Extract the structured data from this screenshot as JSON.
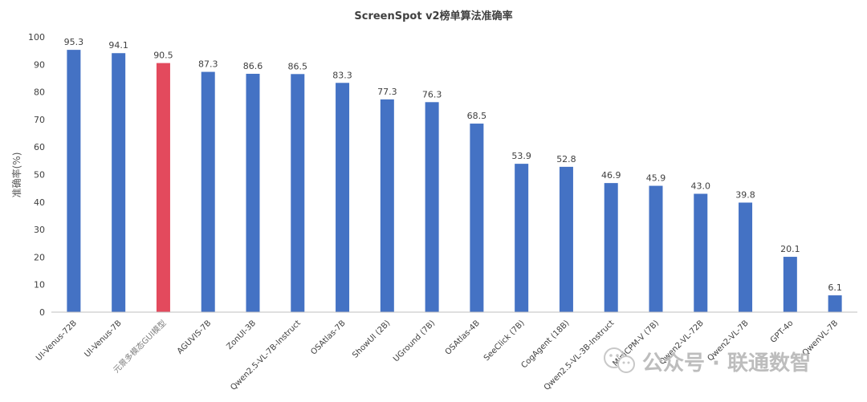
{
  "chart_data": {
    "type": "bar",
    "title": "ScreenSpot v2榜单算法准确率",
    "xlabel": "",
    "ylabel": "准确率(%)",
    "ylim": [
      0,
      100
    ],
    "yticks": [
      0,
      10,
      20,
      30,
      40,
      50,
      60,
      70,
      80,
      90,
      100
    ],
    "grid": false,
    "legend": "none",
    "categories": [
      "UI-Venus-72B",
      "UI-Venus-7B",
      "元景多模态GUI模型",
      "AGUVIS-7B",
      "ZonUI-3B",
      "Qwen2.5-VL-7B-Instruct",
      "OSAtlas-7B",
      "ShowUI (2B)",
      "UGround (7B)",
      "OSAtlas-4B",
      "SeeClick (7B)",
      "CogAgent (18B)",
      "Qwen2.5-VL-3B-Instruct",
      "MiniCPM-V (7B)",
      "Qwen2-VL-72B",
      "Qwen2-VL-7B",
      "GPT-4o",
      "QwenVL-7B"
    ],
    "values": [
      95.3,
      94.1,
      90.5,
      87.3,
      86.6,
      86.5,
      83.3,
      77.3,
      76.3,
      68.5,
      53.9,
      52.8,
      46.9,
      45.9,
      43.0,
      39.8,
      20.1,
      6.1
    ],
    "value_labels": [
      "95.3",
      "94.1",
      "90.5",
      "87.3",
      "86.6",
      "86.5",
      "83.3",
      "77.3",
      "76.3",
      "68.5",
      "53.9",
      "52.8",
      "46.9",
      "45.9",
      "43.0",
      "39.8",
      "20.1",
      "6.1"
    ],
    "colors": {
      "bar": "#4472C4",
      "highlight": "#E34A5D",
      "axis": "#bfbfbf",
      "text": "#404040",
      "highlight_label": "#7f7f7f"
    },
    "highlight_index": 2
  },
  "watermark": {
    "icon": "wechat-icon",
    "text": "公众号 · 联通数智"
  }
}
